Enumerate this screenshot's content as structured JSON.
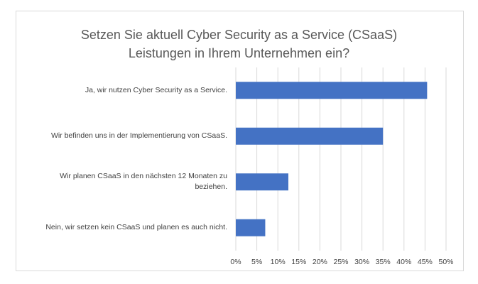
{
  "chart_data": {
    "type": "bar",
    "orientation": "horizontal",
    "title_lines": [
      "Setzen Sie aktuell Cyber Security as a Service (CSaaS)",
      "Leistungen in Ihrem Unternehmen ein?"
    ],
    "categories": [
      "Ja, wir nutzen Cyber Security as a Service.",
      "Wir befinden uns in der Implementierung von CSaaS.",
      "Wir planen CSaaS in den nächsten 12 Monaten zu beziehen.",
      "Nein, wir setzen kein CSaaS und planen es auch nicht."
    ],
    "category_lines": [
      [
        "Ja, wir nutzen Cyber Security as a Service."
      ],
      [
        "Wir befinden uns in der Implementierung von CSaaS."
      ],
      [
        "Wir planen CSaaS in den nächsten 12 Monaten zu",
        "beziehen."
      ],
      [
        "Nein, wir setzen kein CSaaS und planen es auch nicht."
      ]
    ],
    "values": [
      45.5,
      35,
      12.5,
      7
    ],
    "xlim": [
      0,
      50
    ],
    "xticks": [
      "0%",
      "5%",
      "10%",
      "15%",
      "20%",
      "25%",
      "30%",
      "35%",
      "40%",
      "45%",
      "50%"
    ],
    "xlabel": "",
    "ylabel": "",
    "grid": true,
    "bar_color": "#4472c4",
    "grid_color": "#d9d9d9"
  }
}
